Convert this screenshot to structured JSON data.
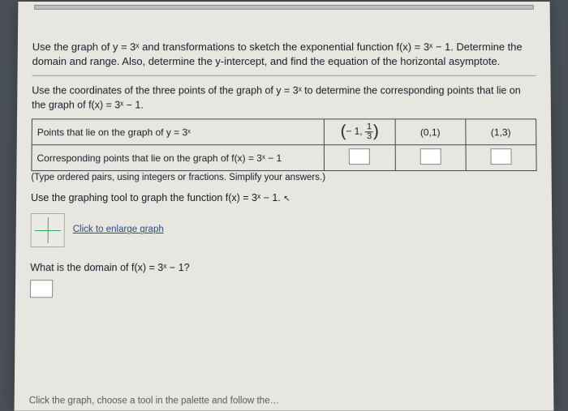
{
  "intro": "Use the graph of y = 3ˣ and transformations to sketch the exponential function f(x) = 3ˣ − 1. Determine the domain and range. Also, determine the y-intercept, and find the equation of the horizontal asymptote.",
  "sub": "Use the coordinates of the three points of the graph of y = 3ˣ to determine the corresponding points that lie on the graph of f(x) = 3ˣ − 1.",
  "table": {
    "row1_label": "Points that lie on the graph of y = 3ˣ",
    "p1_open": "(",
    "p1_neg": "− 1,",
    "p1_num": "1",
    "p1_den": "3",
    "p1_close": ")",
    "p2": "(0,1)",
    "p3": "(1,3)",
    "row2_label": "Corresponding points that lie on the graph of f(x) = 3ˣ − 1"
  },
  "hint": "(Type ordered pairs, using integers or fractions. Simplify your answers.)",
  "task": "Use the graphing tool to graph the function f(x) = 3ˣ − 1.",
  "enlarge": "Click to enlarge graph",
  "domain_q": "What is the domain of f(x) = 3ˣ − 1?",
  "footer": "Click the graph, choose a tool in the palette and follow the…",
  "colors": {
    "page_bg": "#e8e6e0",
    "body_bg": "#4a5058",
    "text": "#1a1a2a",
    "link": "#2a4b7a",
    "border": "#444"
  }
}
